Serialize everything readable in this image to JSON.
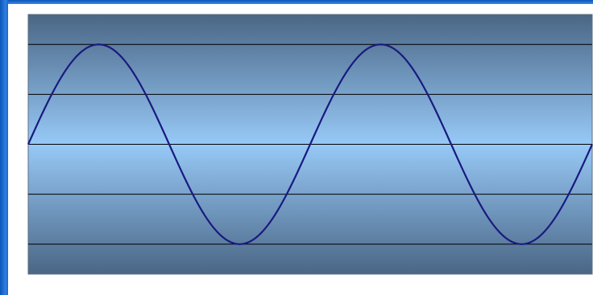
{
  "chart_data": {
    "type": "line",
    "title": "",
    "xlabel": "",
    "ylabel": "",
    "grid": true,
    "ylim": [
      -1.3,
      1.3
    ],
    "gridlines_y": [
      -1,
      -0.5,
      0,
      0.5,
      1
    ],
    "x_range_degrees": [
      0,
      720
    ],
    "series": [
      {
        "values_x_degrees": [
          0,
          30,
          60,
          90,
          120,
          150,
          180,
          210,
          240,
          270,
          300,
          330,
          360,
          390,
          420,
          450,
          480,
          510,
          540,
          570,
          600,
          630,
          660,
          690,
          720
        ],
        "values_y": [
          0,
          0.5,
          0.866,
          1,
          0.866,
          0.5,
          0,
          -0.5,
          -0.866,
          -1,
          -0.866,
          -0.5,
          0,
          0.5,
          0.866,
          1,
          0.866,
          0.5,
          0,
          -0.5,
          -0.866,
          -1,
          -0.866,
          -0.5,
          0
        ],
        "color": "#1a1a80"
      }
    ],
    "background_gradient": [
      "#4a6685",
      "#97c9f7",
      "#4a6685"
    ],
    "gridline_color": "#000000"
  }
}
